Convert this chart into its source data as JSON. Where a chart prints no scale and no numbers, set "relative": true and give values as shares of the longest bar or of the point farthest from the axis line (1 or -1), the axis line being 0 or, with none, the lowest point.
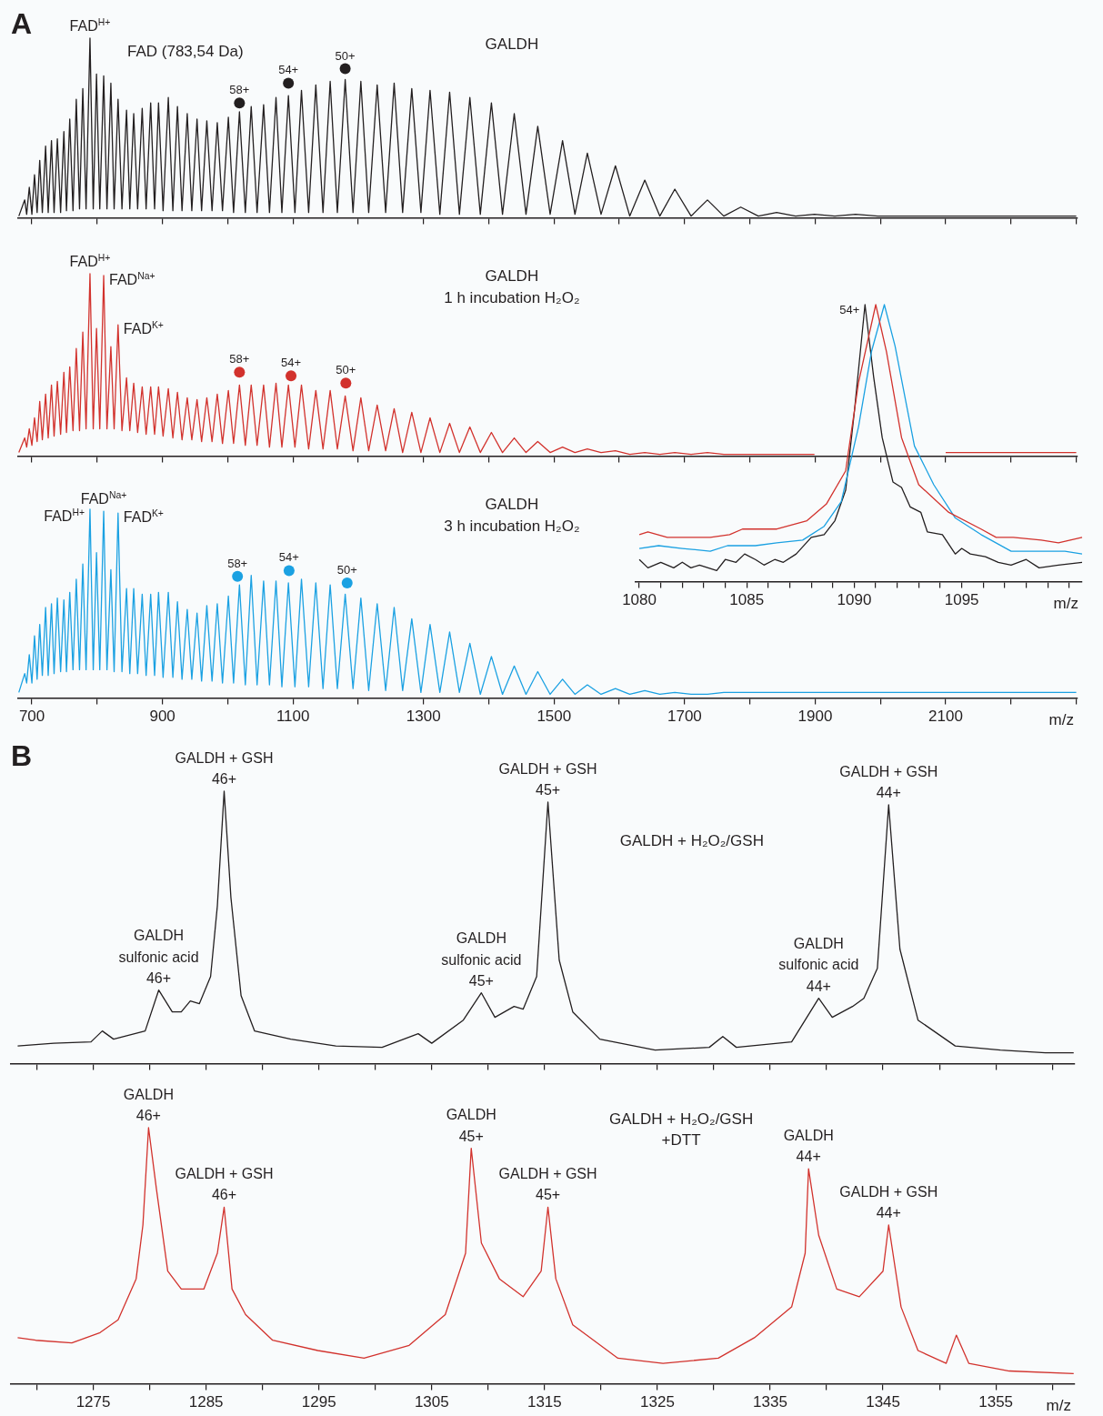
{
  "chart_data": [
    {
      "type": "line",
      "title": "GALDH",
      "relative": true,
      "tick_labels": false,
      "annotations": [
        "A",
        "FAD (783,54 Da)",
        {
          "text": "FAD$^{H+}$",
          "x": 789,
          "y": 1.0
        },
        {
          "text": "58+",
          "x": 1018,
          "y": 0.64
        },
        {
          "text": "54+",
          "x": 1093,
          "y": 0.75
        },
        {
          "text": "50+",
          "x": 1180,
          "y": 0.83
        }
      ],
      "xlim": [
        679,
        2302
      ],
      "xticks": [
        {
          "value": 700,
          "label": null
        },
        {
          "value": 800,
          "label": null
        },
        {
          "value": 900,
          "label": null
        },
        {
          "value": 1000,
          "label": null
        },
        {
          "value": 1100,
          "label": null
        },
        {
          "value": 1200,
          "label": null
        },
        {
          "value": 1300,
          "label": null
        },
        {
          "value": 1400,
          "label": null
        },
        {
          "value": 1500,
          "label": null
        },
        {
          "value": 1600,
          "label": null
        },
        {
          "value": 1700,
          "label": null
        },
        {
          "value": 1800,
          "label": null
        },
        {
          "value": 1900,
          "label": null
        },
        {
          "value": 2000,
          "label": null
        },
        {
          "value": 2100,
          "label": null
        },
        {
          "value": 2200,
          "label": null
        },
        {
          "value": 2300,
          "label": null
        }
      ],
      "x": [
        680,
        689,
        692,
        696,
        700,
        704,
        708,
        712,
        716,
        721,
        725,
        730,
        734,
        739,
        744,
        749,
        753,
        758,
        763,
        768,
        773,
        778,
        783,
        789,
        794,
        799,
        804,
        810,
        815,
        821,
        826,
        832,
        838,
        845,
        850,
        856,
        862,
        869,
        875,
        882,
        888,
        894,
        901,
        909,
        916,
        923,
        930,
        938,
        945,
        953,
        960,
        968,
        976,
        984,
        992,
        1001,
        1009,
        1018,
        1027,
        1036,
        1045,
        1055,
        1064,
        1074,
        1083,
        1093,
        1103,
        1113,
        1124,
        1135,
        1146,
        1157,
        1168,
        1180,
        1192,
        1204,
        1216,
        1229,
        1242,
        1255,
        1268,
        1282,
        1296,
        1310,
        1325,
        1340,
        1355,
        1371,
        1387,
        1404,
        1421,
        1439,
        1457,
        1475,
        1494,
        1513,
        1532,
        1551,
        1572,
        1594,
        1616,
        1639,
        1662,
        1685,
        1710,
        1735,
        1760,
        1786,
        1813,
        1841,
        1870,
        1899,
        1930,
        1962,
        1996,
        2030,
        2100,
        2200,
        2300
      ],
      "series": [
        {
          "color": "#231f20",
          "values": [
            0.01,
            0.1,
            0.02,
            0.17,
            0.02,
            0.24,
            0.03,
            0.32,
            0.03,
            0.4,
            0.03,
            0.43,
            0.03,
            0.44,
            0.03,
            0.48,
            0.04,
            0.55,
            0.04,
            0.66,
            0.05,
            0.72,
            0.05,
            1.0,
            0.05,
            0.8,
            0.05,
            0.79,
            0.05,
            0.75,
            0.05,
            0.66,
            0.05,
            0.6,
            0.05,
            0.58,
            0.05,
            0.61,
            0.05,
            0.64,
            0.05,
            0.64,
            0.04,
            0.67,
            0.04,
            0.62,
            0.04,
            0.58,
            0.04,
            0.55,
            0.04,
            0.54,
            0.04,
            0.53,
            0.04,
            0.56,
            0.03,
            0.59,
            0.03,
            0.62,
            0.03,
            0.63,
            0.03,
            0.67,
            0.03,
            0.68,
            0.03,
            0.71,
            0.03,
            0.74,
            0.03,
            0.76,
            0.03,
            0.77,
            0.03,
            0.76,
            0.03,
            0.74,
            0.03,
            0.75,
            0.03,
            0.72,
            0.03,
            0.71,
            0.02,
            0.7,
            0.02,
            0.67,
            0.02,
            0.64,
            0.02,
            0.58,
            0.02,
            0.51,
            0.02,
            0.43,
            0.02,
            0.36,
            0.02,
            0.29,
            0.01,
            0.21,
            0.01,
            0.16,
            0.01,
            0.1,
            0.01,
            0.06,
            0.01,
            0.03,
            0.01,
            0.02,
            0.01,
            0.02,
            0.01,
            0.01,
            0.01,
            0.01,
            0.01
          ]
        },
        {
          "type": "scatter",
          "marker": "circle",
          "color": "#231f20",
          "x": [
            1018,
            1093,
            1180
          ],
          "values": [
            0.64,
            0.75,
            0.83
          ]
        }
      ]
    },
    {
      "type": "line",
      "title": "GALDH",
      "subtitle": "1 h incubation H₂O₂",
      "relative": true,
      "tick_labels": false,
      "annotations": [
        {
          "text": "FAD$^{H+}$",
          "x": 789,
          "y": 1.0
        },
        {
          "text": "FAD$^{Na+}$",
          "x": 810,
          "y": 0.99
        },
        {
          "text": "FAD$^{K+}$",
          "x": 832,
          "y": 0.72
        },
        {
          "text": "58+",
          "x": 1018,
          "y": 0.46
        },
        {
          "text": "54+",
          "x": 1097,
          "y": 0.44
        },
        {
          "text": "50+",
          "x": 1181,
          "y": 0.4
        }
      ],
      "xlim": [
        679,
        2302
      ],
      "xticks": [
        {
          "value": 700,
          "label": null
        },
        {
          "value": 800,
          "label": null
        },
        {
          "value": 900,
          "label": null
        },
        {
          "value": 1000,
          "label": null
        },
        {
          "value": 1100,
          "label": null
        },
        {
          "value": 1200,
          "label": null
        },
        {
          "value": 1300,
          "label": null
        },
        {
          "value": 1400,
          "label": null
        },
        {
          "value": 1500,
          "label": null
        },
        {
          "value": 1600,
          "label": null
        },
        {
          "value": 1700,
          "label": null
        },
        {
          "value": 1800,
          "label": null
        },
        {
          "value": 1900,
          "label": null
        },
        {
          "value": 2000,
          "label": null
        },
        {
          "value": 2100,
          "label": null
        },
        {
          "value": 2200,
          "label": null
        },
        {
          "value": 2300,
          "label": null
        }
      ],
      "x": [
        680,
        689,
        692,
        696,
        700,
        704,
        708,
        712,
        716,
        721,
        725,
        730,
        734,
        739,
        744,
        749,
        753,
        758,
        763,
        768,
        773,
        778,
        783,
        789,
        794,
        799,
        804,
        810,
        815,
        821,
        826,
        832,
        838,
        845,
        850,
        856,
        862,
        869,
        875,
        882,
        888,
        894,
        901,
        909,
        916,
        923,
        930,
        938,
        945,
        953,
        960,
        968,
        976,
        984,
        992,
        1001,
        1009,
        1018,
        1027,
        1036,
        1045,
        1055,
        1064,
        1074,
        1083,
        1093,
        1103,
        1113,
        1124,
        1135,
        1146,
        1157,
        1168,
        1180,
        1192,
        1204,
        1216,
        1229,
        1242,
        1255,
        1268,
        1282,
        1296,
        1310,
        1325,
        1340,
        1355,
        1371,
        1387,
        1404,
        1421,
        1439,
        1457,
        1475,
        1494,
        1513,
        1532,
        1551,
        1572,
        1594,
        1616,
        1639,
        1662,
        1685,
        1710,
        1735,
        1760,
        1786,
        1813,
        1841,
        1870,
        1899,
        1930,
        1962,
        1996,
        2030,
        2100,
        2200,
        2300
      ],
      "series": [
        {
          "color": "#d2322d",
          "values": [
            0.02,
            0.1,
            0.05,
            0.15,
            0.06,
            0.21,
            0.08,
            0.3,
            0.09,
            0.34,
            0.1,
            0.39,
            0.11,
            0.41,
            0.12,
            0.46,
            0.13,
            0.49,
            0.14,
            0.59,
            0.14,
            0.68,
            0.15,
            1.0,
            0.15,
            0.7,
            0.15,
            0.99,
            0.15,
            0.6,
            0.15,
            0.72,
            0.14,
            0.43,
            0.14,
            0.4,
            0.13,
            0.38,
            0.12,
            0.38,
            0.12,
            0.38,
            0.11,
            0.37,
            0.1,
            0.35,
            0.09,
            0.32,
            0.09,
            0.31,
            0.08,
            0.32,
            0.08,
            0.34,
            0.07,
            0.36,
            0.07,
            0.39,
            0.06,
            0.39,
            0.06,
            0.39,
            0.05,
            0.4,
            0.05,
            0.39,
            0.05,
            0.39,
            0.04,
            0.36,
            0.04,
            0.36,
            0.04,
            0.33,
            0.03,
            0.32,
            0.03,
            0.28,
            0.03,
            0.26,
            0.02,
            0.24,
            0.02,
            0.21,
            0.02,
            0.18,
            0.02,
            0.16,
            0.02,
            0.13,
            0.02,
            0.1,
            0.02,
            0.08,
            0.02,
            0.05,
            0.02,
            0.04,
            0.02,
            0.03,
            0.01,
            0.02,
            0.01,
            0.02,
            0.01,
            0.02,
            0.01,
            0.01,
            0.01,
            0.01,
            0.01,
            0.01,
            null,
            null,
            null,
            null,
            0.02,
            0.02,
            0.02
          ]
        },
        {
          "type": "scatter",
          "marker": "circle",
          "color": "#d2322d",
          "x": [
            1018,
            1097,
            1181
          ],
          "values": [
            0.46,
            0.44,
            0.4
          ]
        }
      ]
    },
    {
      "type": "line",
      "title": "GALDH",
      "subtitle": "3 h incubation H₂O₂",
      "xlabel": "m/z",
      "relative": true,
      "tick_labels": "x",
      "annotations": [
        {
          "text": "FAD$^{H+}$",
          "x": 789,
          "y": 1.0
        },
        {
          "text": "FAD$^{Na+}$",
          "x": 810,
          "y": 0.99
        },
        {
          "text": "FAD$^{K+}$",
          "x": 832,
          "y": 0.98
        },
        {
          "text": "58+",
          "x": 1015,
          "y": 0.645
        },
        {
          "text": "54+",
          "x": 1094,
          "y": 0.675
        },
        {
          "text": "50+",
          "x": 1183,
          "y": 0.61
        }
      ],
      "xlim": [
        679,
        2302
      ],
      "xticks": [
        700,
        {
          "value": 800,
          "label": null
        },
        900,
        {
          "value": 1000,
          "label": null
        },
        1100,
        {
          "value": 1200,
          "label": null
        },
        1300,
        {
          "value": 1400,
          "label": null
        },
        1500,
        {
          "value": 1600,
          "label": null
        },
        1700,
        {
          "value": 1800,
          "label": null
        },
        1900,
        {
          "value": 2000,
          "label": null
        },
        2100,
        {
          "value": 2200,
          "label": null
        },
        {
          "value": 2300,
          "label": null
        }
      ],
      "x": [
        680,
        689,
        692,
        696,
        700,
        704,
        708,
        712,
        716,
        721,
        725,
        730,
        734,
        739,
        744,
        749,
        753,
        758,
        763,
        768,
        773,
        778,
        783,
        789,
        794,
        799,
        804,
        810,
        815,
        821,
        826,
        832,
        838,
        845,
        850,
        856,
        862,
        869,
        875,
        882,
        888,
        894,
        901,
        909,
        916,
        923,
        930,
        938,
        945,
        953,
        960,
        968,
        976,
        984,
        992,
        1001,
        1009,
        1018,
        1027,
        1036,
        1045,
        1055,
        1064,
        1074,
        1083,
        1093,
        1103,
        1113,
        1124,
        1135,
        1146,
        1157,
        1168,
        1180,
        1192,
        1204,
        1216,
        1229,
        1242,
        1255,
        1268,
        1282,
        1296,
        1310,
        1325,
        1340,
        1355,
        1371,
        1387,
        1404,
        1421,
        1439,
        1457,
        1475,
        1494,
        1513,
        1532,
        1551,
        1572,
        1594,
        1616,
        1639,
        1662,
        1685,
        1710,
        1735,
        1760,
        1786,
        1813,
        1841,
        1870,
        1899,
        1930,
        1962,
        1996,
        2030,
        2100,
        2200,
        2300
      ],
      "series": [
        {
          "color": "#1ba1e2",
          "values": [
            0.03,
            0.13,
            0.08,
            0.23,
            0.08,
            0.33,
            0.1,
            0.39,
            0.12,
            0.48,
            0.12,
            0.5,
            0.13,
            0.53,
            0.14,
            0.52,
            0.14,
            0.56,
            0.15,
            0.63,
            0.15,
            0.71,
            0.15,
            1.0,
            0.15,
            0.77,
            0.15,
            0.99,
            0.15,
            0.68,
            0.14,
            0.98,
            0.14,
            0.58,
            0.13,
            0.58,
            0.13,
            0.55,
            0.12,
            0.55,
            0.12,
            0.56,
            0.11,
            0.56,
            0.11,
            0.51,
            0.1,
            0.47,
            0.1,
            0.45,
            0.09,
            0.49,
            0.09,
            0.5,
            0.08,
            0.54,
            0.08,
            0.6,
            0.07,
            0.65,
            0.07,
            0.62,
            0.07,
            0.62,
            0.06,
            0.61,
            0.06,
            0.63,
            0.06,
            0.61,
            0.05,
            0.6,
            0.05,
            0.55,
            0.05,
            0.53,
            0.04,
            0.5,
            0.04,
            0.48,
            0.04,
            0.42,
            0.03,
            0.39,
            0.03,
            0.35,
            0.03,
            0.29,
            0.02,
            0.22,
            0.02,
            0.17,
            0.02,
            0.14,
            0.02,
            0.1,
            0.02,
            0.07,
            0.02,
            0.05,
            0.02,
            0.04,
            0.02,
            0.03,
            0.02,
            0.02,
            0.03,
            0.03,
            0.03,
            0.03,
            0.03,
            0.03,
            0.03,
            0.03,
            0.03,
            0.03,
            0.03,
            0.03,
            0.03
          ]
        },
        {
          "type": "scatter",
          "marker": "circle",
          "color": "#1ba1e2",
          "x": [
            1015,
            1094,
            1183
          ],
          "values": [
            0.645,
            0.675,
            0.61
          ]
        }
      ]
    },
    {
      "type": "line",
      "xlabel": "m/z",
      "relative": true,
      "annotations": [
        {
          "text": "54+",
          "x": 1090.5,
          "y": 1.0
        }
      ],
      "xlim": [
        1079.8,
        1100.6
      ],
      "xticks": [
        1080,
        {
          "value": 1081,
          "label": null
        },
        {
          "value": 1082,
          "label": null
        },
        {
          "value": 1083,
          "label": null
        },
        {
          "value": 1084,
          "label": null
        },
        1085,
        {
          "value": 1086,
          "label": null
        },
        {
          "value": 1087,
          "label": null
        },
        {
          "value": 1088,
          "label": null
        },
        {
          "value": 1089,
          "label": null
        },
        1090,
        {
          "value": 1091,
          "label": null
        },
        {
          "value": 1092,
          "label": null
        },
        {
          "value": 1093,
          "label": null
        },
        {
          "value": 1094,
          "label": null
        },
        1095,
        {
          "value": 1096,
          "label": null
        },
        {
          "value": 1097,
          "label": null
        },
        {
          "value": 1098,
          "label": null
        },
        {
          "value": 1099,
          "label": null
        },
        {
          "value": 1100,
          "label": null
        }
      ],
      "series": [
        {
          "color": "#d2322d",
          "x": [
            1080.0,
            1080.4,
            1081.3,
            1082.5,
            1083.3,
            1084.2,
            1084.8,
            1086.4,
            1087.8,
            1088.7,
            1089.6,
            1090.2,
            1091.0,
            1091.5,
            1092.2,
            1093.0,
            1094.4,
            1095.9,
            1096.6,
            1097.4,
            1098.7,
            1099.5,
            1100.6
          ],
          "values": [
            0.17,
            0.18,
            0.16,
            0.16,
            0.16,
            0.17,
            0.19,
            0.19,
            0.22,
            0.28,
            0.4,
            0.72,
            1.0,
            0.83,
            0.52,
            0.35,
            0.25,
            0.19,
            0.16,
            0.16,
            0.15,
            0.14,
            0.16
          ]
        },
        {
          "color": "#1ba1e2",
          "x": [
            1080.0,
            1080.9,
            1082.0,
            1083.3,
            1084.1,
            1085.4,
            1086.4,
            1087.6,
            1088.6,
            1089.4,
            1090.2,
            1090.8,
            1091.4,
            1091.9,
            1092.8,
            1093.7,
            1094.7,
            1095.9,
            1097.3,
            1098.7,
            1099.8,
            1100.6
          ],
          "values": [
            0.12,
            0.13,
            0.12,
            0.11,
            0.13,
            0.13,
            0.14,
            0.15,
            0.2,
            0.29,
            0.56,
            0.83,
            1.0,
            0.85,
            0.49,
            0.35,
            0.23,
            0.17,
            0.11,
            0.11,
            0.11,
            0.1
          ]
        },
        {
          "color": "#231f20",
          "x": [
            1080.0,
            1080.4,
            1081.0,
            1081.6,
            1082.0,
            1082.4,
            1082.8,
            1083.6,
            1084.0,
            1084.5,
            1084.9,
            1085.4,
            1085.8,
            1086.3,
            1086.7,
            1087.3,
            1088.0,
            1088.6,
            1089.1,
            1089.6,
            1090.0,
            1090.5,
            1090.9,
            1091.3,
            1091.8,
            1092.2,
            1092.6,
            1093.1,
            1093.4,
            1094.1,
            1094.7,
            1095.0,
            1095.4,
            1096.1,
            1096.7,
            1097.3,
            1098.0,
            1098.6,
            1099.5,
            1100.6
          ],
          "values": [
            0.08,
            0.05,
            0.07,
            0.05,
            0.07,
            0.05,
            0.06,
            0.04,
            0.08,
            0.07,
            0.1,
            0.08,
            0.06,
            0.08,
            0.07,
            0.1,
            0.16,
            0.17,
            0.22,
            0.33,
            0.61,
            1.0,
            0.74,
            0.52,
            0.36,
            0.34,
            0.27,
            0.25,
            0.18,
            0.17,
            0.1,
            0.12,
            0.1,
            0.09,
            0.07,
            0.06,
            0.08,
            0.05,
            0.06,
            0.07
          ]
        }
      ]
    },
    {
      "type": "line",
      "title": "GALDH + H₂O₂/GSH",
      "relative": true,
      "tick_labels": false,
      "annotations": [
        "B",
        {
          "text": "GALDH + GSH\n46+",
          "x": 1286.6,
          "y": 1.0
        },
        {
          "text": "GALDH\nsulfonic acid\n46+",
          "x": 1280.8,
          "y": 0.27
        },
        {
          "text": "GALDH + GSH\n45+",
          "x": 1315.3,
          "y": 0.96
        },
        {
          "text": "GALDH\nsulfonic acid\n45+",
          "x": 1309.4,
          "y": 0.26
        },
        {
          "text": "GALDH + GSH\n44+",
          "x": 1345.5,
          "y": 0.95
        },
        {
          "text": "GALDH\nsulfonic acid\n44+",
          "x": 1339.3,
          "y": 0.24
        }
      ],
      "xlim": [
        1267.7,
        1362
      ],
      "xticks": [
        {
          "value": 1270,
          "label": null
        },
        {
          "value": 1275,
          "label": null
        },
        {
          "value": 1280,
          "label": null
        },
        {
          "value": 1285,
          "label": null
        },
        {
          "value": 1290,
          "label": null
        },
        {
          "value": 1295,
          "label": null
        },
        {
          "value": 1300,
          "label": null
        },
        {
          "value": 1305,
          "label": null
        },
        {
          "value": 1310,
          "label": null
        },
        {
          "value": 1315,
          "label": null
        },
        {
          "value": 1320,
          "label": null
        },
        {
          "value": 1325,
          "label": null
        },
        {
          "value": 1330,
          "label": null
        },
        {
          "value": 1335,
          "label": null
        },
        {
          "value": 1340,
          "label": null
        },
        {
          "value": 1345,
          "label": null
        },
        {
          "value": 1350,
          "label": null
        },
        {
          "value": 1355,
          "label": null
        },
        {
          "value": 1360,
          "label": null
        }
      ],
      "series": [
        {
          "color": "#231f20",
          "x": [
            1268.3,
            1271.5,
            1274.8,
            1275.8,
            1276.8,
            1279.6,
            1280.8,
            1282.0,
            1282.8,
            1283.6,
            1284.4,
            1285.4,
            1286.0,
            1286.6,
            1287.2,
            1288.1,
            1289.3,
            1292.5,
            1296.5,
            1300.6,
            1303.8,
            1305.0,
            1307.8,
            1309.4,
            1310.6,
            1312.3,
            1313.1,
            1314.3,
            1315.3,
            1316.3,
            1317.5,
            1319.9,
            1324.8,
            1329.6,
            1330.8,
            1332.0,
            1336.9,
            1339.3,
            1340.5,
            1342.3,
            1343.3,
            1344.5,
            1345.5,
            1346.5,
            1348.1,
            1351.4,
            1355.4,
            1359.4,
            1361.9
          ],
          "values": [
            0.065,
            0.075,
            0.08,
            0.12,
            0.09,
            0.12,
            0.27,
            0.19,
            0.19,
            0.23,
            0.22,
            0.32,
            0.58,
            1.0,
            0.61,
            0.25,
            0.12,
            0.09,
            0.065,
            0.06,
            0.11,
            0.075,
            0.16,
            0.26,
            0.17,
            0.21,
            0.2,
            0.32,
            0.96,
            0.38,
            0.19,
            0.09,
            0.05,
            0.06,
            0.1,
            0.06,
            0.08,
            0.24,
            0.17,
            0.21,
            0.24,
            0.35,
            0.95,
            0.42,
            0.16,
            0.065,
            0.05,
            0.04,
            0.04
          ]
        }
      ]
    },
    {
      "type": "line",
      "title": "GALDH + H₂O₂/GSH\n+DTT",
      "xlabel": "m/z",
      "relative": true,
      "tick_labels": "x",
      "annotations": [
        {
          "text": "GALDH\n46+",
          "x": 1279.9,
          "y": 1.0
        },
        {
          "text": "GALDH + GSH\n46+",
          "x": 1286.6,
          "y": 0.69
        },
        {
          "text": "GALDH\n45+",
          "x": 1308.5,
          "y": 0.92
        },
        {
          "text": "GALDH + GSH\n45+",
          "x": 1315.3,
          "y": 0.69
        },
        {
          "text": "GALDH\n44+",
          "x": 1338.4,
          "y": 0.84
        },
        {
          "text": "GALDH + GSH\n44+",
          "x": 1345.5,
          "y": 0.62
        }
      ],
      "xlim": [
        1267.7,
        1362
      ],
      "xticks": [
        {
          "value": 1270,
          "label": null
        },
        1275,
        {
          "value": 1280,
          "label": null
        },
        1285,
        {
          "value": 1290,
          "label": null
        },
        1295,
        {
          "value": 1300,
          "label": null
        },
        1305,
        {
          "value": 1310,
          "label": null
        },
        1315,
        {
          "value": 1320,
          "label": null
        },
        1325,
        {
          "value": 1330,
          "label": null
        },
        1335,
        {
          "value": 1340,
          "label": null
        },
        1345,
        {
          "value": 1350,
          "label": null
        },
        1355,
        {
          "value": 1360,
          "label": null
        }
      ],
      "series": [
        {
          "color": "#d2322d",
          "x": [
            1268.3,
            1269.9,
            1273.1,
            1275.6,
            1277.2,
            1278.8,
            1279.4,
            1279.9,
            1280.6,
            1281.6,
            1282.8,
            1284.8,
            1286.0,
            1286.6,
            1287.3,
            1288.5,
            1290.9,
            1294.9,
            1299.0,
            1303.0,
            1306.2,
            1308.0,
            1308.5,
            1309.4,
            1311.0,
            1313.1,
            1314.7,
            1315.3,
            1316.0,
            1317.5,
            1321.5,
            1325.5,
            1330.4,
            1333.6,
            1336.9,
            1338.1,
            1338.4,
            1339.3,
            1340.9,
            1342.9,
            1345.0,
            1345.5,
            1346.6,
            1348.1,
            1350.6,
            1351.5,
            1352.6,
            1356.2,
            1361.9
          ],
          "values": [
            0.18,
            0.17,
            0.16,
            0.2,
            0.25,
            0.41,
            0.62,
            1.0,
            0.76,
            0.44,
            0.37,
            0.37,
            0.51,
            0.69,
            0.37,
            0.27,
            0.17,
            0.13,
            0.1,
            0.15,
            0.27,
            0.51,
            0.92,
            0.55,
            0.41,
            0.34,
            0.44,
            0.69,
            0.41,
            0.23,
            0.1,
            0.08,
            0.1,
            0.18,
            0.3,
            0.51,
            0.84,
            0.58,
            0.37,
            0.34,
            0.44,
            0.62,
            0.3,
            0.13,
            0.08,
            0.19,
            0.08,
            0.05,
            0.04
          ]
        }
      ]
    }
  ]
}
